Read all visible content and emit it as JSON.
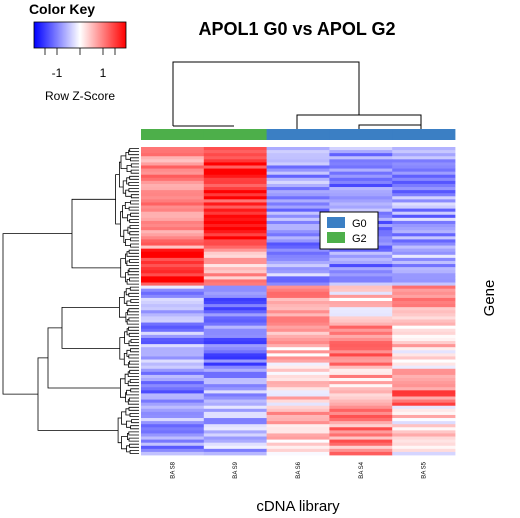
{
  "chart_data": {
    "type": "heatmap",
    "title": "APOL1 G0 vs APOL G2",
    "xlabel": "cDNA library",
    "ylabel": "Gene",
    "columns": [
      "BA S8",
      "BA S9",
      "BA S6",
      "BA S4",
      "BA S5"
    ],
    "column_groups": [
      "G2",
      "G2",
      "G0",
      "G0",
      "G0"
    ],
    "legend": [
      {
        "name": "G0",
        "color": "#3b7fc4"
      },
      {
        "name": "G2",
        "color": "#4daf4a"
      }
    ],
    "legend_position": "center-right",
    "color_key": {
      "title": "Color Key",
      "subtitle": "Row Z-Score",
      "ticks": [
        "-1",
        "1"
      ],
      "tick_values": [
        -1,
        1
      ],
      "range": [
        -2,
        2
      ],
      "low_color": "#0000ff",
      "mid_color": "#ffffff",
      "high_color": "#ff0000"
    },
    "row_blocks": [
      {
        "rows": 33,
        "values": [
          0.9,
          1.6,
          -0.8,
          -0.9,
          -0.8
        ]
      },
      {
        "rows": 12,
        "values": [
          1.6,
          0.6,
          -0.7,
          -0.9,
          -0.7
        ]
      },
      {
        "rows": 13,
        "values": [
          -0.7,
          -1.2,
          0.9,
          0.3,
          0.7
        ]
      },
      {
        "rows": 14,
        "values": [
          -0.8,
          -1.1,
          0.4,
          0.9,
          0.3
        ]
      },
      {
        "rows": 12,
        "values": [
          -0.9,
          -0.7,
          0.3,
          0.6,
          1.1
        ]
      },
      {
        "rows": 16,
        "values": [
          -0.8,
          -0.6,
          0.5,
          0.9,
          0.2
        ]
      }
    ]
  }
}
